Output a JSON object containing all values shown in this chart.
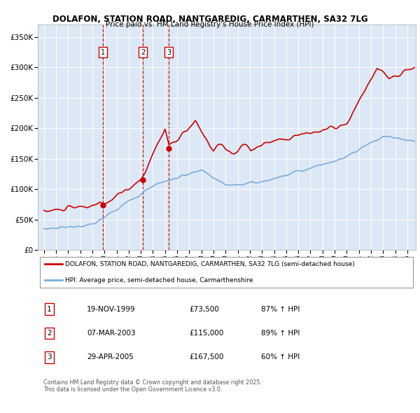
{
  "title": "DOLAFON, STATION ROAD, NANTGAREDIG, CARMARTHEN, SA32 7LG",
  "subtitle": "Price paid vs. HM Land Registry's House Price Index (HPI)",
  "ylabel_ticks": [
    "£0",
    "£50K",
    "£100K",
    "£150K",
    "£200K",
    "£250K",
    "£300K",
    "£350K"
  ],
  "ytick_values": [
    0,
    50000,
    100000,
    150000,
    200000,
    250000,
    300000,
    350000
  ],
  "ylim": [
    0,
    370000
  ],
  "red_color": "#cc0000",
  "blue_color": "#7aaddc",
  "background_color": "#dce8f5",
  "transactions": [
    {
      "label": "1",
      "date": "19-NOV-1999",
      "price": 73500,
      "hpi_pct": "87% ↑ HPI",
      "x_year": 1999.88
    },
    {
      "label": "2",
      "date": "07-MAR-2003",
      "price": 115000,
      "hpi_pct": "89% ↑ HPI",
      "x_year": 2003.18
    },
    {
      "label": "3",
      "date": "29-APR-2005",
      "price": 167500,
      "hpi_pct": "60% ↑ HPI",
      "x_year": 2005.32
    }
  ],
  "legend_label_red": "DOLAFON, STATION ROAD, NANTGAREDIG, CARMARTHEN, SA32 7LG (semi-detached house)",
  "legend_label_blue": "HPI: Average price, semi-detached house, Carmarthenshire",
  "footer": "Contains HM Land Registry data © Crown copyright and database right 2025.\nThis data is licensed under the Open Government Licence v3.0.",
  "xlim_start": 1994.5,
  "xlim_end": 2025.7,
  "table_rows": [
    [
      "1",
      "19-NOV-1999",
      "£73,500",
      "87% ↑ HPI"
    ],
    [
      "2",
      "07-MAR-2003",
      "£115,000",
      "89% ↑ HPI"
    ],
    [
      "3",
      "29-APR-2005",
      "£167,500",
      "60% ↑ HPI"
    ]
  ]
}
